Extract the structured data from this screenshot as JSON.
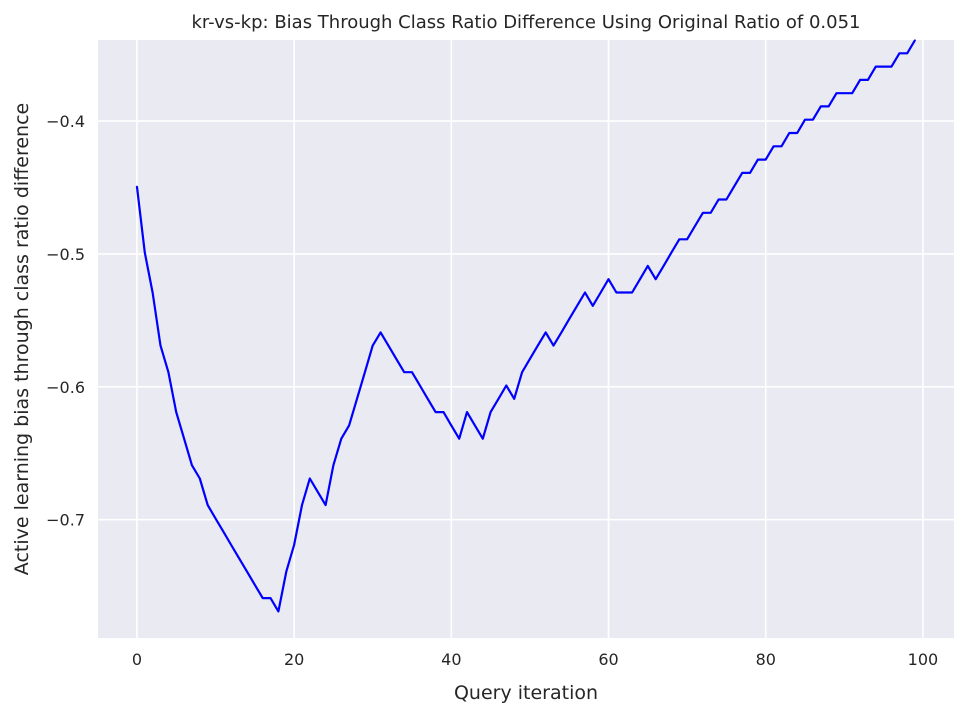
{
  "chart_data": {
    "type": "line",
    "title": "kr-vs-kp: Bias Through Class Ratio Difference Using Original Ratio of 0.051",
    "xlabel": "Query iteration",
    "ylabel": "Active learning bias through class ratio difference",
    "xlim": [
      -4.95,
      103.95
    ],
    "ylim": [
      -0.789,
      -0.339
    ],
    "xticks": [
      0,
      20,
      40,
      60,
      80,
      100
    ],
    "xtick_labels": [
      "0",
      "20",
      "40",
      "60",
      "80",
      "100"
    ],
    "yticks": [
      -0.4,
      -0.5,
      -0.6,
      -0.7
    ],
    "ytick_labels": [
      "−0.4",
      "−0.5",
      "−0.6",
      "−0.7"
    ],
    "grid": true,
    "background": "#eaeaf2",
    "line_color": "#0000ff",
    "series": [
      {
        "name": "bias",
        "x": [
          0,
          1,
          2,
          3,
          4,
          5,
          6,
          7,
          8,
          9,
          10,
          11,
          12,
          13,
          14,
          15,
          16,
          17,
          18,
          19,
          20,
          21,
          22,
          23,
          24,
          25,
          26,
          27,
          28,
          29,
          30,
          31,
          32,
          33,
          34,
          35,
          36,
          37,
          38,
          39,
          40,
          41,
          42,
          43,
          44,
          45,
          46,
          47,
          48,
          49,
          50,
          51,
          52,
          53,
          54,
          55,
          56,
          57,
          58,
          59,
          60,
          61,
          62,
          63,
          64,
          65,
          66,
          67,
          68,
          69,
          70,
          71,
          72,
          73,
          74,
          75,
          76,
          77,
          78,
          79,
          80,
          81,
          82,
          83,
          84,
          85,
          86,
          87,
          88,
          89,
          90,
          91,
          92,
          93,
          94,
          95,
          96,
          97,
          98,
          99
        ],
        "values": [
          -0.449,
          -0.499,
          -0.529,
          -0.569,
          -0.589,
          -0.619,
          -0.639,
          -0.659,
          -0.669,
          -0.689,
          -0.699,
          -0.709,
          -0.719,
          -0.729,
          -0.739,
          -0.749,
          -0.759,
          -0.759,
          -0.769,
          -0.739,
          -0.719,
          -0.689,
          -0.669,
          -0.679,
          -0.689,
          -0.659,
          -0.639,
          -0.629,
          -0.609,
          -0.589,
          -0.569,
          -0.559,
          -0.569,
          -0.579,
          -0.589,
          -0.589,
          -0.599,
          -0.609,
          -0.619,
          -0.619,
          -0.629,
          -0.639,
          -0.619,
          -0.629,
          -0.639,
          -0.619,
          -0.609,
          -0.599,
          -0.609,
          -0.589,
          -0.579,
          -0.569,
          -0.559,
          -0.569,
          -0.559,
          -0.549,
          -0.539,
          -0.529,
          -0.539,
          -0.529,
          -0.519,
          -0.529,
          -0.529,
          -0.529,
          -0.519,
          -0.509,
          -0.519,
          -0.509,
          -0.499,
          -0.489,
          -0.489,
          -0.479,
          -0.469,
          -0.469,
          -0.459,
          -0.459,
          -0.449,
          -0.439,
          -0.439,
          -0.429,
          -0.429,
          -0.419,
          -0.419,
          -0.409,
          -0.409,
          -0.399,
          -0.399,
          -0.389,
          -0.389,
          -0.379,
          -0.379,
          -0.379,
          -0.369,
          -0.369,
          -0.359,
          -0.359,
          -0.359,
          -0.349,
          -0.349,
          -0.339
        ]
      }
    ]
  }
}
